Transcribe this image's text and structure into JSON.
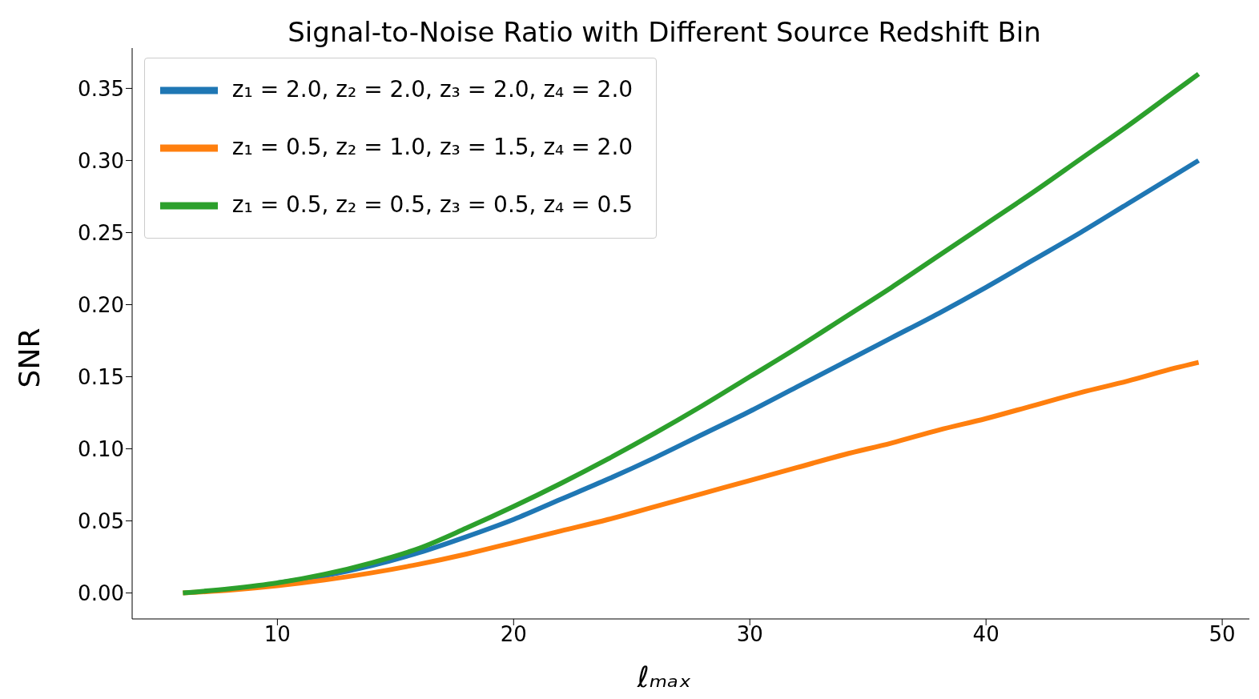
{
  "chart_data": {
    "type": "line",
    "title": "Signal-to-Noise Ratio with Different Source Redshift Bin",
    "xlabel": "ℓₘₐₓ",
    "ylabel": "SNR",
    "x": [
      6,
      8,
      10,
      12,
      14,
      16,
      18,
      20,
      22,
      24,
      26,
      28,
      30,
      32,
      34,
      36,
      38,
      40,
      42,
      44,
      46,
      48,
      49
    ],
    "series": [
      {
        "name": "z₁ = 2.0, z₂ = 2.0, z₃ = 2.0, z₄ = 2.0",
        "color": "#1f77b4",
        "values": [
          null,
          null,
          0.007,
          0.012,
          0.019,
          0.028,
          0.039,
          0.051,
          0.065,
          0.079,
          0.094,
          0.11,
          0.126,
          0.143,
          0.16,
          0.177,
          0.194,
          0.212,
          0.231,
          0.25,
          0.27,
          0.29,
          0.3
        ]
      },
      {
        "name": "z₁ = 0.5, z₂ = 1.0, z₃ = 1.5, z₄ = 2.0",
        "color": "#ff7f0e",
        "values": [
          0,
          0.002,
          0.005,
          0.009,
          0.014,
          0.02,
          0.027,
          0.035,
          0.043,
          0.051,
          0.06,
          0.069,
          0.078,
          0.087,
          0.096,
          0.104,
          0.113,
          0.121,
          0.13,
          0.139,
          0.147,
          0.156,
          0.16
        ]
      },
      {
        "name": "z₁ = 0.5, z₂ = 0.5, z₃ = 0.5, z₄ = 0.5",
        "color": "#2ca02c",
        "values": [
          0,
          0.003,
          0.007,
          0.013,
          0.021,
          0.031,
          0.045,
          0.06,
          0.076,
          0.093,
          0.111,
          0.13,
          0.15,
          0.17,
          0.191,
          0.212,
          0.234,
          0.256,
          0.278,
          0.301,
          0.324,
          0.348,
          0.36
        ]
      }
    ],
    "xlim": [
      3.85,
      51.15
    ],
    "xticks": [
      10,
      20,
      30,
      40,
      50
    ],
    "ylim": [
      -0.018,
      0.378
    ],
    "yticks": [
      {
        "value": 0,
        "label": "0.00"
      },
      {
        "value": 0.05,
        "label": "0.05"
      },
      {
        "value": 0.1,
        "label": "0.10"
      },
      {
        "value": 0.15,
        "label": "0.15"
      },
      {
        "value": 0.2,
        "label": "0.20"
      },
      {
        "value": 0.25,
        "label": "0.25"
      },
      {
        "value": 0.3,
        "label": "0.30"
      },
      {
        "value": 0.35,
        "label": "0.35"
      }
    ],
    "grid": false,
    "legend": "top left",
    "marker": "none",
    "line_style": "solid"
  }
}
